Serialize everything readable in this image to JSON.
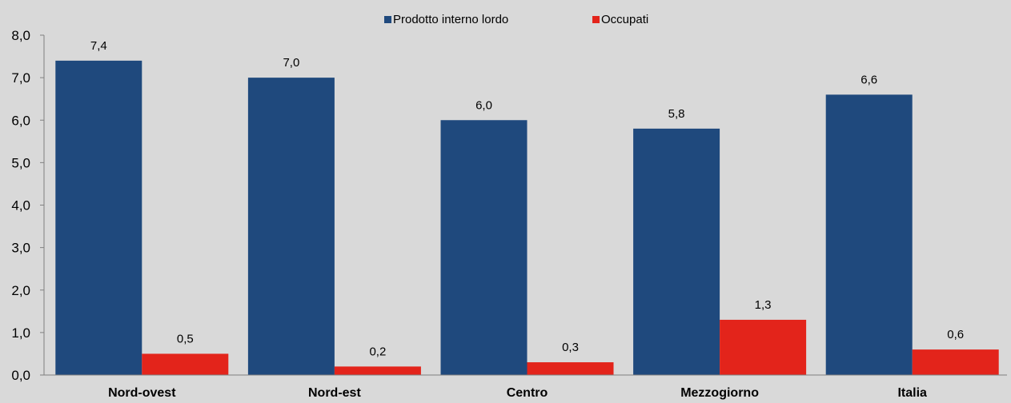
{
  "chart_data": {
    "type": "bar",
    "categories": [
      "Nord-ovest",
      "Nord-est",
      "Centro",
      "Mezzogiorno",
      "Italia"
    ],
    "series": [
      {
        "name": "Prodotto interno lordo",
        "color": "#1f497d",
        "values": [
          7.4,
          7.0,
          6.0,
          5.8,
          6.6
        ],
        "labels": [
          "7,4",
          "7,0",
          "6,0",
          "5,8",
          "6,6"
        ]
      },
      {
        "name": "Occupati",
        "color": "#e3241b",
        "values": [
          0.5,
          0.2,
          0.3,
          1.3,
          0.6
        ],
        "labels": [
          "0,5",
          "0,2",
          "0,3",
          "1,3",
          "0,6"
        ]
      }
    ],
    "y_ticks": [
      "0,0",
      "1,0",
      "2,0",
      "3,0",
      "4,0",
      "5,0",
      "6,0",
      "7,0",
      "8,0"
    ],
    "ylim": [
      0,
      8
    ],
    "legend_position": "top-center",
    "grid": false
  }
}
